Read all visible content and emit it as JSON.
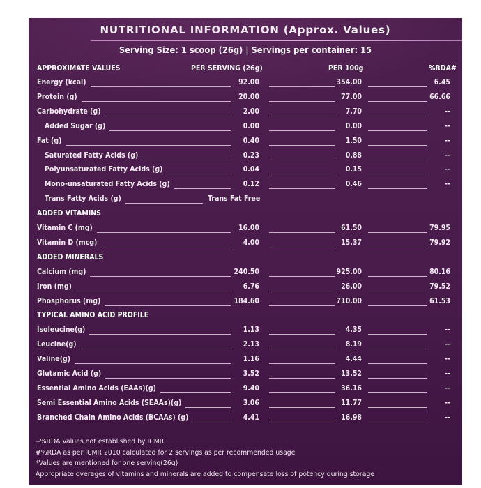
{
  "title": "NUTRITIONAL INFORMATION (Approx. Values)",
  "subtitle": "Serving Size: 1 scoop (26g)  |  Servings per container: 15",
  "headers": {
    "label": "APPROXIMATE VALUES",
    "per_serving": "PER SERVING (26g)",
    "per_100g": "PER 100g",
    "rda": "%RDA#"
  },
  "rows": [
    {
      "type": "item",
      "label": "Energy (kcal)",
      "serving": "92.00",
      "per100": "354.00",
      "rda": "6.45"
    },
    {
      "type": "item",
      "label": "Protein (g)",
      "serving": "20.00",
      "per100": "77.00",
      "rda": "66.66"
    },
    {
      "type": "item",
      "label": "Carbohydrate (g)",
      "serving": "2.00",
      "per100": "7.70",
      "rda": "--"
    },
    {
      "type": "sub",
      "label": "Added Sugar (g)",
      "serving": "0.00",
      "per100": "0.00",
      "rda": "--"
    },
    {
      "type": "item",
      "label": "Fat (g)",
      "serving": "0.40",
      "per100": "1.50",
      "rda": "--"
    },
    {
      "type": "sub",
      "label": "Saturated Fatty Acids (g)",
      "serving": "0.23",
      "per100": "0.88",
      "rda": "--"
    },
    {
      "type": "sub",
      "label": "Polyunsaturated Fatty Acids (g)",
      "serving": "0.04",
      "per100": "0.15",
      "rda": "--"
    },
    {
      "type": "sub",
      "label": "Mono-unsaturated Fatty Acids (g)",
      "serving": "0.12",
      "per100": "0.46",
      "rda": "--"
    },
    {
      "type": "subfree",
      "label": "Trans Fatty Acids (g)",
      "serving": "Trans Fat Free"
    },
    {
      "type": "section",
      "label": "ADDED VITAMINS"
    },
    {
      "type": "item",
      "label": "Vitamin C (mg)",
      "serving": "16.00",
      "per100": "61.50",
      "rda": "79.95"
    },
    {
      "type": "item",
      "label": "Vitamin D (mcg)",
      "serving": "4.00",
      "per100": "15.37",
      "rda": "79.92"
    },
    {
      "type": "section",
      "label": "ADDED MINERALS"
    },
    {
      "type": "item",
      "label": "Calcium (mg)",
      "serving": "240.50",
      "per100": "925.00",
      "rda": "80.16"
    },
    {
      "type": "item",
      "label": "Iron (mg)",
      "serving": "6.76",
      "per100": "26.00",
      "rda": "79.52"
    },
    {
      "type": "item",
      "label": "Phosphorus (mg)",
      "serving": "184.60",
      "per100": "710.00",
      "rda": "61.53"
    },
    {
      "type": "section",
      "label": "TYPICAL AMINO ACID PROFILE"
    },
    {
      "type": "item",
      "label": "Isoleucine(g)",
      "serving": "1.13",
      "per100": "4.35",
      "rda": "--"
    },
    {
      "type": "item",
      "label": "Leucine(g)",
      "serving": "2.13",
      "per100": "8.19",
      "rda": "--"
    },
    {
      "type": "item",
      "label": "Valine(g)",
      "serving": "1.16",
      "per100": "4.44",
      "rda": "--"
    },
    {
      "type": "item",
      "label": "Glutamic Acid (g)",
      "serving": "3.52",
      "per100": "13.52",
      "rda": "--"
    },
    {
      "type": "item",
      "label": "Essential Amino Acids (EAAs)(g)",
      "serving": "9.40",
      "per100": "36.16",
      "rda": "--"
    },
    {
      "type": "item",
      "label": "Semi Essential Amino Acids (SEAAs)(g)",
      "serving": "3.06",
      "per100": "11.77",
      "rda": "--"
    },
    {
      "type": "item",
      "label": "Branched Chain Amino Acids (BCAAs) (g)",
      "serving": "4.41",
      "per100": "16.98",
      "rda": "--"
    }
  ],
  "footnotes": [
    "--%RDA Values not established by ICMR",
    "#%RDA as per ICMR 2010 calculated for 2 servings as per recommended usage",
    "*Values are mentioned for one serving(26g)",
    "Appropriate overages of vitamins and minerals are added to compensate loss of potency during storage"
  ]
}
